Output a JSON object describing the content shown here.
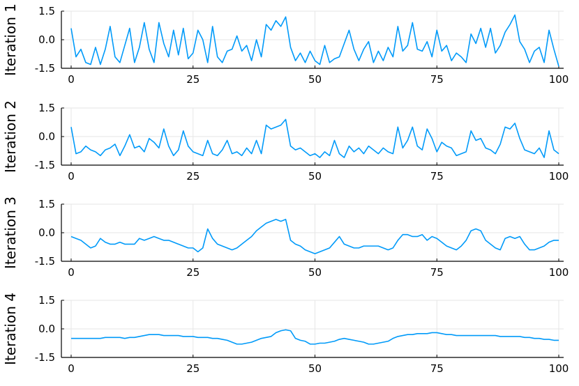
{
  "chart_data": [
    {
      "type": "line",
      "title": "",
      "xlabel": "",
      "ylabel": "Iteration 1",
      "xlim": [
        -2,
        101
      ],
      "ylim": [
        -1.5,
        1.5
      ],
      "x_ticks": [
        0,
        25,
        50,
        75,
        100
      ],
      "x_tick_labels": [
        "0",
        "25",
        "50",
        "75",
        "100"
      ],
      "y_ticks": [
        -1.5,
        0,
        1.5
      ],
      "y_tick_labels": [
        "-1.5",
        "0.0",
        "1.5"
      ],
      "grid": true,
      "legend": "none",
      "color": "#009af9",
      "series": [
        {
          "x": [
            0,
            1,
            2,
            3,
            4,
            5,
            6,
            7,
            8,
            9,
            10,
            11,
            12,
            13,
            14,
            15,
            16,
            17,
            18,
            19,
            20,
            21,
            22,
            23,
            24,
            25,
            26,
            27,
            28,
            29,
            30,
            31,
            32,
            33,
            34,
            35,
            36,
            37,
            38,
            39,
            40,
            41,
            42,
            43,
            44,
            45,
            46,
            47,
            48,
            49,
            50,
            51,
            52,
            53,
            54,
            55,
            56,
            57,
            58,
            59,
            60,
            61,
            62,
            63,
            64,
            65,
            66,
            67,
            68,
            69,
            70,
            71,
            72,
            73,
            74,
            75,
            76,
            77,
            78,
            79,
            80,
            81,
            82,
            83,
            84,
            85,
            86,
            87,
            88,
            89,
            90,
            91,
            92,
            93,
            94,
            95,
            96,
            97,
            98,
            99,
            100
          ],
          "y": [
            0.6,
            -0.9,
            -0.5,
            -1.2,
            -1.3,
            -0.4,
            -1.3,
            -0.5,
            0.7,
            -0.9,
            -1.2,
            -0.3,
            0.6,
            -1.2,
            -0.4,
            0.9,
            -0.5,
            -1.2,
            0.9,
            -0.2,
            -0.9,
            0.5,
            -0.8,
            0.6,
            -1.0,
            -0.7,
            0.5,
            0.0,
            -1.2,
            0.7,
            -0.9,
            -1.2,
            -0.6,
            -0.5,
            0.2,
            -0.6,
            -0.3,
            -1.1,
            0.0,
            -0.9,
            0.8,
            0.5,
            1.0,
            0.7,
            1.2,
            -0.4,
            -1.1,
            -0.7,
            -1.2,
            -0.6,
            -1.1,
            -1.3,
            -0.3,
            -1.2,
            -1.0,
            -0.9,
            -0.2,
            0.5,
            -0.5,
            -1.1,
            -0.5,
            -0.1,
            -1.2,
            -0.6,
            -1.1,
            -0.4,
            -0.9,
            0.7,
            -0.6,
            -0.3,
            0.9,
            -0.5,
            -0.6,
            -0.1,
            -0.9,
            0.5,
            -0.6,
            -0.3,
            -1.1,
            -0.7,
            -0.9,
            -1.2,
            0.3,
            -0.2,
            0.6,
            -0.4,
            0.6,
            -0.7,
            -0.3,
            0.4,
            0.8,
            1.3,
            -0.1,
            -0.5,
            -1.2,
            -0.6,
            -0.4,
            -1.2,
            0.5,
            -0.5,
            -1.4
          ]
        }
      ]
    },
    {
      "type": "line",
      "title": "",
      "xlabel": "",
      "ylabel": "Iteration 2",
      "xlim": [
        -2,
        101
      ],
      "ylim": [
        -1.5,
        1.5
      ],
      "x_ticks": [
        0,
        25,
        50,
        75,
        100
      ],
      "x_tick_labels": [
        "0",
        "25",
        "50",
        "75",
        "100"
      ],
      "y_ticks": [
        -1.5,
        0,
        1.5
      ],
      "y_tick_labels": [
        "-1.5",
        "0.0",
        "1.5"
      ],
      "grid": true,
      "legend": "none",
      "color": "#009af9",
      "series": [
        {
          "x": [
            0,
            1,
            2,
            3,
            4,
            5,
            6,
            7,
            8,
            9,
            10,
            11,
            12,
            13,
            14,
            15,
            16,
            17,
            18,
            19,
            20,
            21,
            22,
            23,
            24,
            25,
            26,
            27,
            28,
            29,
            30,
            31,
            32,
            33,
            34,
            35,
            36,
            37,
            38,
            39,
            40,
            41,
            42,
            43,
            44,
            45,
            46,
            47,
            48,
            49,
            50,
            51,
            52,
            53,
            54,
            55,
            56,
            57,
            58,
            59,
            60,
            61,
            62,
            63,
            64,
            65,
            66,
            67,
            68,
            69,
            70,
            71,
            72,
            73,
            74,
            75,
            76,
            77,
            78,
            79,
            80,
            81,
            82,
            83,
            84,
            85,
            86,
            87,
            88,
            89,
            90,
            91,
            92,
            93,
            94,
            95,
            96,
            97,
            98,
            99,
            100
          ],
          "y": [
            0.5,
            -0.9,
            -0.8,
            -0.5,
            -0.7,
            -0.8,
            -1.0,
            -0.7,
            -0.6,
            -0.4,
            -1.0,
            -0.5,
            0.1,
            -0.6,
            -0.5,
            -0.8,
            -0.1,
            -0.3,
            -0.6,
            0.4,
            -0.5,
            -1.0,
            -0.7,
            0.3,
            -0.5,
            -0.8,
            -0.9,
            -1.0,
            -0.2,
            -0.9,
            -1.0,
            -0.7,
            -0.2,
            -0.9,
            -0.8,
            -1.0,
            -0.6,
            -0.9,
            -0.2,
            -0.9,
            0.6,
            0.4,
            0.5,
            0.6,
            0.9,
            -0.5,
            -0.7,
            -0.6,
            -0.8,
            -1.0,
            -0.9,
            -1.1,
            -0.8,
            -1.0,
            -0.2,
            -0.9,
            -1.1,
            -0.5,
            -0.8,
            -0.6,
            -0.9,
            -0.5,
            -0.7,
            -0.9,
            -0.6,
            -0.8,
            -0.9,
            0.5,
            -0.6,
            -0.2,
            0.5,
            -0.5,
            -0.7,
            0.4,
            -0.1,
            -0.8,
            -0.3,
            -0.5,
            -0.6,
            -1.0,
            -0.9,
            -0.8,
            0.3,
            -0.2,
            -0.1,
            -0.6,
            -0.7,
            -0.9,
            -0.4,
            0.5,
            0.4,
            0.7,
            -0.1,
            -0.7,
            -0.8,
            -0.9,
            -0.6,
            -1.1,
            0.3,
            -0.7,
            -0.9
          ]
        }
      ]
    },
    {
      "type": "line",
      "title": "",
      "xlabel": "",
      "ylabel": "Iteration 3",
      "xlim": [
        -2,
        101
      ],
      "ylim": [
        -1.5,
        1.5
      ],
      "x_ticks": [
        0,
        25,
        50,
        75,
        100
      ],
      "x_tick_labels": [
        "0",
        "25",
        "50",
        "75",
        "100"
      ],
      "y_ticks": [
        -1.5,
        0,
        1.5
      ],
      "y_tick_labels": [
        "-1.5",
        "0.0",
        "1.5"
      ],
      "grid": true,
      "legend": "none",
      "color": "#009af9",
      "series": [
        {
          "x": [
            0,
            1,
            2,
            3,
            4,
            5,
            6,
            7,
            8,
            9,
            10,
            11,
            12,
            13,
            14,
            15,
            16,
            17,
            18,
            19,
            20,
            21,
            22,
            23,
            24,
            25,
            26,
            27,
            28,
            29,
            30,
            31,
            32,
            33,
            34,
            35,
            36,
            37,
            38,
            39,
            40,
            41,
            42,
            43,
            44,
            45,
            46,
            47,
            48,
            49,
            50,
            51,
            52,
            53,
            54,
            55,
            56,
            57,
            58,
            59,
            60,
            61,
            62,
            63,
            64,
            65,
            66,
            67,
            68,
            69,
            70,
            71,
            72,
            73,
            74,
            75,
            76,
            77,
            78,
            79,
            80,
            81,
            82,
            83,
            84,
            85,
            86,
            87,
            88,
            89,
            90,
            91,
            92,
            93,
            94,
            95,
            96,
            97,
            98,
            99,
            100
          ],
          "y": [
            -0.2,
            -0.3,
            -0.4,
            -0.6,
            -0.8,
            -0.7,
            -0.3,
            -0.5,
            -0.6,
            -0.6,
            -0.5,
            -0.6,
            -0.6,
            -0.6,
            -0.3,
            -0.4,
            -0.3,
            -0.2,
            -0.3,
            -0.4,
            -0.4,
            -0.5,
            -0.6,
            -0.7,
            -0.8,
            -0.8,
            -1.0,
            -0.8,
            0.2,
            -0.3,
            -0.6,
            -0.7,
            -0.8,
            -0.9,
            -0.8,
            -0.6,
            -0.4,
            -0.2,
            0.1,
            0.3,
            0.5,
            0.6,
            0.7,
            0.6,
            0.7,
            -0.4,
            -0.6,
            -0.7,
            -0.9,
            -1.0,
            -1.1,
            -1.0,
            -0.9,
            -0.8,
            -0.5,
            -0.2,
            -0.6,
            -0.7,
            -0.8,
            -0.8,
            -0.7,
            -0.7,
            -0.7,
            -0.7,
            -0.8,
            -0.9,
            -0.8,
            -0.4,
            -0.1,
            -0.1,
            -0.2,
            -0.2,
            -0.1,
            -0.4,
            -0.2,
            -0.3,
            -0.5,
            -0.7,
            -0.8,
            -0.9,
            -0.7,
            -0.4,
            0.1,
            0.2,
            0.1,
            -0.4,
            -0.6,
            -0.8,
            -0.9,
            -0.3,
            -0.2,
            -0.3,
            -0.2,
            -0.6,
            -0.9,
            -0.9,
            -0.8,
            -0.7,
            -0.5,
            -0.4,
            -0.4
          ]
        }
      ]
    },
    {
      "type": "line",
      "title": "",
      "xlabel": "",
      "ylabel": "Iteration 4",
      "xlim": [
        -2,
        101
      ],
      "ylim": [
        -1.5,
        1.5
      ],
      "x_ticks": [
        0,
        25,
        50,
        75,
        100
      ],
      "x_tick_labels": [
        "0",
        "25",
        "50",
        "75",
        "100"
      ],
      "y_ticks": [
        -1.5,
        0,
        1.5
      ],
      "y_tick_labels": [
        "-1.5",
        "0.0",
        "1.5"
      ],
      "grid": true,
      "legend": "none",
      "color": "#009af9",
      "series": [
        {
          "x": [
            0,
            1,
            2,
            3,
            4,
            5,
            6,
            7,
            8,
            9,
            10,
            11,
            12,
            13,
            14,
            15,
            16,
            17,
            18,
            19,
            20,
            21,
            22,
            23,
            24,
            25,
            26,
            27,
            28,
            29,
            30,
            31,
            32,
            33,
            34,
            35,
            36,
            37,
            38,
            39,
            40,
            41,
            42,
            43,
            44,
            45,
            46,
            47,
            48,
            49,
            50,
            51,
            52,
            53,
            54,
            55,
            56,
            57,
            58,
            59,
            60,
            61,
            62,
            63,
            64,
            65,
            66,
            67,
            68,
            69,
            70,
            71,
            72,
            73,
            74,
            75,
            76,
            77,
            78,
            79,
            80,
            81,
            82,
            83,
            84,
            85,
            86,
            87,
            88,
            89,
            90,
            91,
            92,
            93,
            94,
            95,
            96,
            97,
            98,
            99,
            100
          ],
          "y": [
            -0.5,
            -0.5,
            -0.5,
            -0.5,
            -0.5,
            -0.5,
            -0.5,
            -0.45,
            -0.45,
            -0.45,
            -0.45,
            -0.5,
            -0.45,
            -0.45,
            -0.4,
            -0.35,
            -0.3,
            -0.3,
            -0.3,
            -0.35,
            -0.35,
            -0.35,
            -0.35,
            -0.4,
            -0.4,
            -0.4,
            -0.45,
            -0.45,
            -0.45,
            -0.5,
            -0.5,
            -0.55,
            -0.6,
            -0.7,
            -0.8,
            -0.8,
            -0.75,
            -0.7,
            -0.6,
            -0.5,
            -0.45,
            -0.4,
            -0.2,
            -0.1,
            -0.05,
            -0.1,
            -0.5,
            -0.6,
            -0.65,
            -0.8,
            -0.8,
            -0.75,
            -0.75,
            -0.7,
            -0.65,
            -0.55,
            -0.5,
            -0.55,
            -0.6,
            -0.65,
            -0.7,
            -0.8,
            -0.8,
            -0.75,
            -0.7,
            -0.65,
            -0.5,
            -0.4,
            -0.35,
            -0.3,
            -0.3,
            -0.25,
            -0.25,
            -0.25,
            -0.2,
            -0.2,
            -0.25,
            -0.3,
            -0.3,
            -0.35,
            -0.35,
            -0.35,
            -0.35,
            -0.35,
            -0.35,
            -0.35,
            -0.35,
            -0.35,
            -0.4,
            -0.4,
            -0.4,
            -0.4,
            -0.4,
            -0.45,
            -0.45,
            -0.5,
            -0.5,
            -0.55,
            -0.55,
            -0.6,
            -0.6
          ]
        }
      ]
    }
  ]
}
